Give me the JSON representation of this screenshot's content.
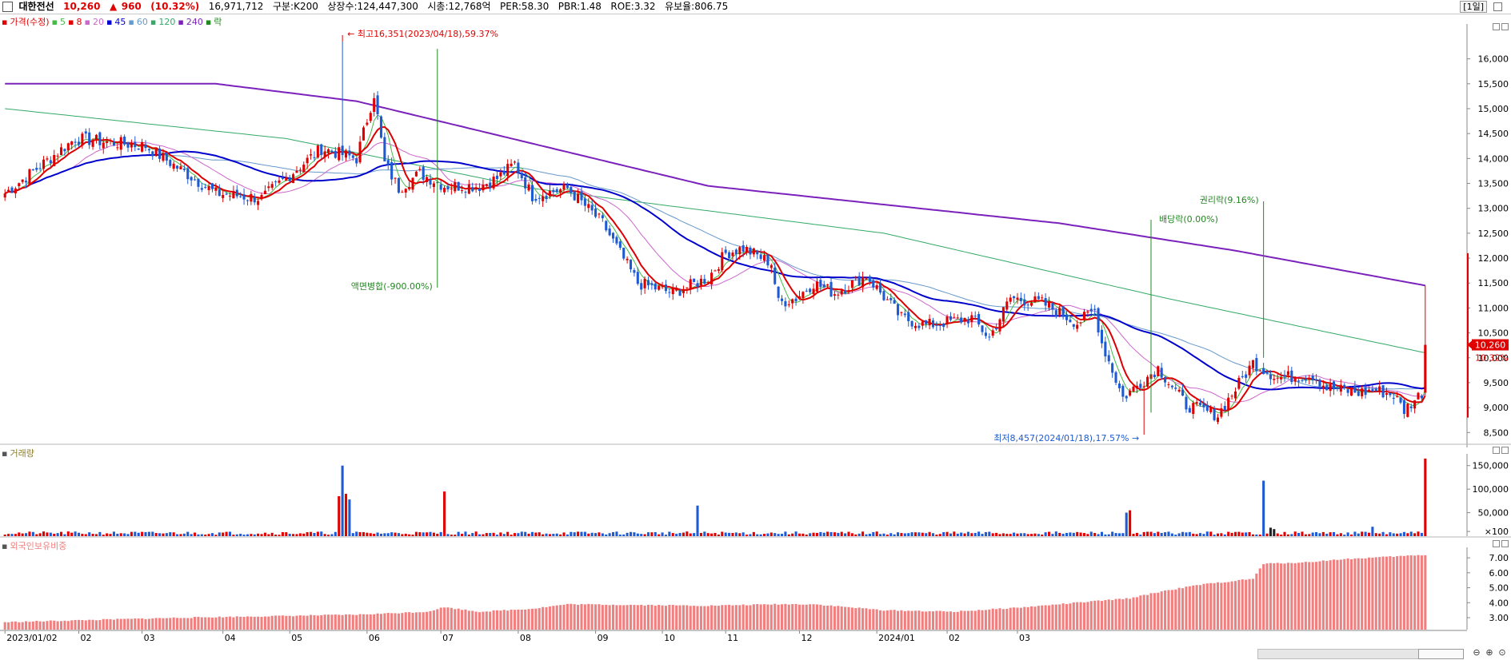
{
  "header": {
    "stock_name": "대한전선",
    "price": "10,260",
    "change_arrow": "▲",
    "change": "960",
    "change_pct": "(10.32%)",
    "volume": "16,971,712",
    "segment": "구분:K200",
    "listed_shares": "상장수:124,447,300",
    "market_cap": "시총:12,768억",
    "per": "PER:58.30",
    "pbr": "PBR:1.48",
    "roe": "ROE:3.32",
    "float_ratio": "유보율:806.75",
    "period": "[1일]"
  },
  "colors": {
    "up": "#e00000",
    "down": "#1e5bd2",
    "ma5": "#44bb44",
    "ma8": "#dd0000",
    "ma20": "#cc66cc",
    "ma45": "#0000cc",
    "ma60": "#6699cc",
    "ma120": "#33aa66",
    "ma240": "#7a22bb",
    "foreign": "#f08080"
  },
  "price_panel": {
    "legend": [
      {
        "label": "가격(수정)",
        "color": "#e00000"
      },
      {
        "label": "5",
        "color": "#44bb44"
      },
      {
        "label": "8",
        "color": "#dd0000"
      },
      {
        "label": "20",
        "color": "#cc66cc"
      },
      {
        "label": "45",
        "color": "#0000cc"
      },
      {
        "label": "60",
        "color": "#6699cc"
      },
      {
        "label": "120",
        "color": "#33aa66"
      },
      {
        "label": "240",
        "color": "#7a22bb"
      },
      {
        "label": "락",
        "color": "#228822"
      }
    ],
    "annotations": {
      "high": "최고16,351(2023/04/18),59.37%",
      "low": "최저8,457(2024/01/18),17.57%",
      "split": "액면병합(-900.00%)",
      "dividend": "배당락(0.00%)",
      "rights": "권리락(9.16%)"
    },
    "last_price_label": "10,260",
    "last_pct_label": "10.32%"
  },
  "volume_panel": {
    "legend": "거래량",
    "ticks": [
      "150,000",
      "100,000",
      "50,000",
      "×100"
    ]
  },
  "foreign_panel": {
    "legend": "외국인보유비중",
    "ticks": [
      "7.00",
      "6.00",
      "5.00",
      "4.00",
      "3.00"
    ]
  },
  "chart_data": {
    "type": "candlestick",
    "title": "",
    "x_labels": [
      "2023/01/02",
      "02",
      "03",
      "04",
      "05",
      "06",
      "07",
      "08",
      "09",
      "10",
      "11",
      "12",
      "2024/01",
      "02",
      "03"
    ],
    "price_axis": {
      "ticks": [
        "16,000",
        "15,500",
        "15,000",
        "14,500",
        "14,000",
        "13,500",
        "13,000",
        "12,500",
        "12,000",
        "11,500",
        "11,000",
        "10,500",
        "10,000",
        "9,500",
        "9,000",
        "8,500"
      ],
      "ylim": [
        8200,
        16700
      ]
    },
    "price_path": [
      [
        0,
        13300
      ],
      [
        20,
        14400
      ],
      [
        40,
        14250
      ],
      [
        60,
        13300
      ],
      [
        73,
        13200
      ],
      [
        90,
        14200
      ],
      [
        100,
        14000
      ],
      [
        105,
        15300
      ],
      [
        108,
        13900
      ],
      [
        112,
        13400
      ],
      [
        118,
        13700
      ],
      [
        125,
        13450
      ],
      [
        135,
        13450
      ],
      [
        140,
        13600
      ],
      [
        145,
        13900
      ],
      [
        150,
        13250
      ],
      [
        160,
        13400
      ],
      [
        170,
        12700
      ],
      [
        180,
        11500
      ],
      [
        190,
        11300
      ],
      [
        200,
        11600
      ],
      [
        205,
        12100
      ],
      [
        210,
        12200
      ],
      [
        218,
        11900
      ],
      [
        220,
        11100
      ],
      [
        225,
        11200
      ],
      [
        230,
        11500
      ],
      [
        236,
        11300
      ],
      [
        245,
        11650
      ],
      [
        255,
        10800
      ],
      [
        262,
        10650
      ],
      [
        275,
        10800
      ],
      [
        280,
        10400
      ],
      [
        286,
        11200
      ],
      [
        295,
        11100
      ],
      [
        305,
        10700
      ],
      [
        310,
        10950
      ],
      [
        312,
        10300
      ],
      [
        318,
        9200
      ],
      [
        328,
        9800
      ],
      [
        336,
        9050
      ],
      [
        345,
        8850
      ],
      [
        355,
        9900
      ],
      [
        362,
        9600
      ],
      [
        372,
        9650
      ],
      [
        376,
        9400
      ],
      [
        385,
        9300
      ],
      [
        390,
        9350
      ],
      [
        395,
        9250
      ],
      [
        398,
        8950
      ],
      [
        403,
        9300
      ],
      [
        404,
        10260
      ]
    ],
    "candles_total": 405,
    "high": {
      "value": 16351,
      "date": "2023/04/18"
    },
    "low": {
      "value": 8457,
      "date": "2024/01/18"
    },
    "last": {
      "close": 10260,
      "change": 960,
      "change_pct": 10.32
    },
    "moving_averages": {
      "ma240": [
        [
          0,
          15500
        ],
        [
          60,
          15500
        ],
        [
          100,
          15150
        ],
        [
          200,
          13450
        ],
        [
          300,
          12700
        ],
        [
          350,
          12150
        ],
        [
          404,
          11450
        ]
      ],
      "ma120": [
        [
          0,
          15000
        ],
        [
          80,
          14400
        ],
        [
          150,
          13400
        ],
        [
          250,
          12500
        ],
        [
          330,
          11200
        ],
        [
          404,
          10100
        ]
      ]
    },
    "volume": {
      "ylim": [
        0,
        175000
      ],
      "spikes": [
        [
          95,
          85000
        ],
        [
          96,
          150000
        ],
        [
          97,
          90000
        ],
        [
          98,
          78000
        ],
        [
          125,
          95000
        ],
        [
          197,
          65000
        ],
        [
          319,
          50000
        ],
        [
          320,
          55000
        ],
        [
          358,
          118000
        ],
        [
          360,
          18000
        ],
        [
          361,
          15000
        ],
        [
          389,
          20000
        ],
        [
          404,
          165000
        ]
      ]
    },
    "foreign_holding": {
      "ylim": [
        2.2,
        7.7
      ],
      "path": [
        [
          0,
          2.7
        ],
        [
          50,
          3.0
        ],
        [
          100,
          3.2
        ],
        [
          120,
          3.4
        ],
        [
          125,
          3.7
        ],
        [
          135,
          3.4
        ],
        [
          150,
          3.6
        ],
        [
          160,
          3.9
        ],
        [
          200,
          3.8
        ],
        [
          220,
          3.9
        ],
        [
          230,
          3.9
        ],
        [
          250,
          3.5
        ],
        [
          270,
          3.4
        ],
        [
          290,
          3.7
        ],
        [
          300,
          3.9
        ],
        [
          320,
          4.3
        ],
        [
          330,
          4.8
        ],
        [
          340,
          5.2
        ],
        [
          355,
          5.6
        ],
        [
          358,
          6.6
        ],
        [
          370,
          6.7
        ],
        [
          380,
          6.9
        ],
        [
          404,
          7.2
        ]
      ]
    }
  }
}
